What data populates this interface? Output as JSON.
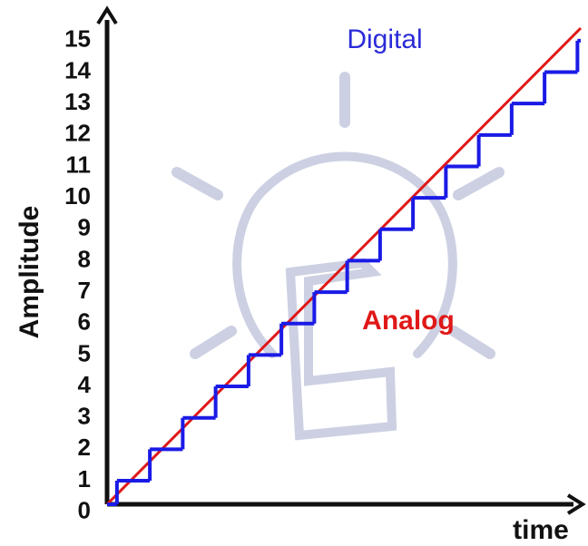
{
  "chart_data": {
    "type": "line",
    "x_label": "time",
    "y_label": "Amplitude",
    "annotations": [
      {
        "text": "Digital",
        "color": "#2b2bd9"
      },
      {
        "text": "Analog",
        "color": "#e01818"
      }
    ],
    "xlim": [
      -0.3,
      14.1
    ],
    "ylim": [
      0.25,
      15.4
    ],
    "yticks": [
      0,
      1,
      2,
      3,
      4,
      5,
      6,
      7,
      8,
      9,
      10,
      11,
      12,
      13,
      14,
      15
    ],
    "series": [
      {
        "name": "Analog",
        "color": "#e01818",
        "x": [
          -0.3,
          14.1
        ],
        "values": [
          0.25,
          15.4
        ]
      },
      {
        "name": "Digital",
        "color": "#1a1ae6",
        "step": true,
        "x": [
          0,
          1,
          2,
          3,
          4,
          5,
          6,
          7,
          8,
          9,
          10,
          11,
          12,
          13,
          14
        ],
        "values": [
          1,
          2,
          3,
          4,
          5,
          6,
          7,
          8,
          9,
          10,
          11,
          12,
          13,
          14,
          15
        ]
      }
    ]
  }
}
